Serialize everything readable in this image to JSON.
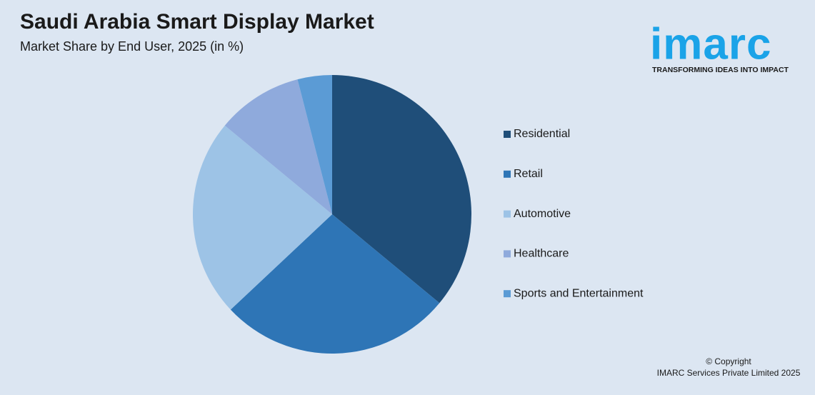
{
  "chart_data": {
    "type": "pie",
    "title": "Saudi Arabia Smart Display Market",
    "subtitle": "Market Share by End User, 2025 (in %)",
    "categories": [
      "Residential",
      "Retail",
      "Automotive",
      "Healthcare",
      "Sports and Entertainment"
    ],
    "values": [
      36,
      27,
      23,
      10,
      4
    ],
    "colors": [
      "#1f4e79",
      "#2e75b6",
      "#9dc3e6",
      "#8faadc",
      "#5b9bd5"
    ],
    "legend": "right"
  },
  "logo": {
    "name": "imarc",
    "tagline": "TRANSFORMING IDEAS INTO IMPACT"
  },
  "copyright": [
    "© Copyright",
    "IMARC Services Private Limited 2025"
  ]
}
